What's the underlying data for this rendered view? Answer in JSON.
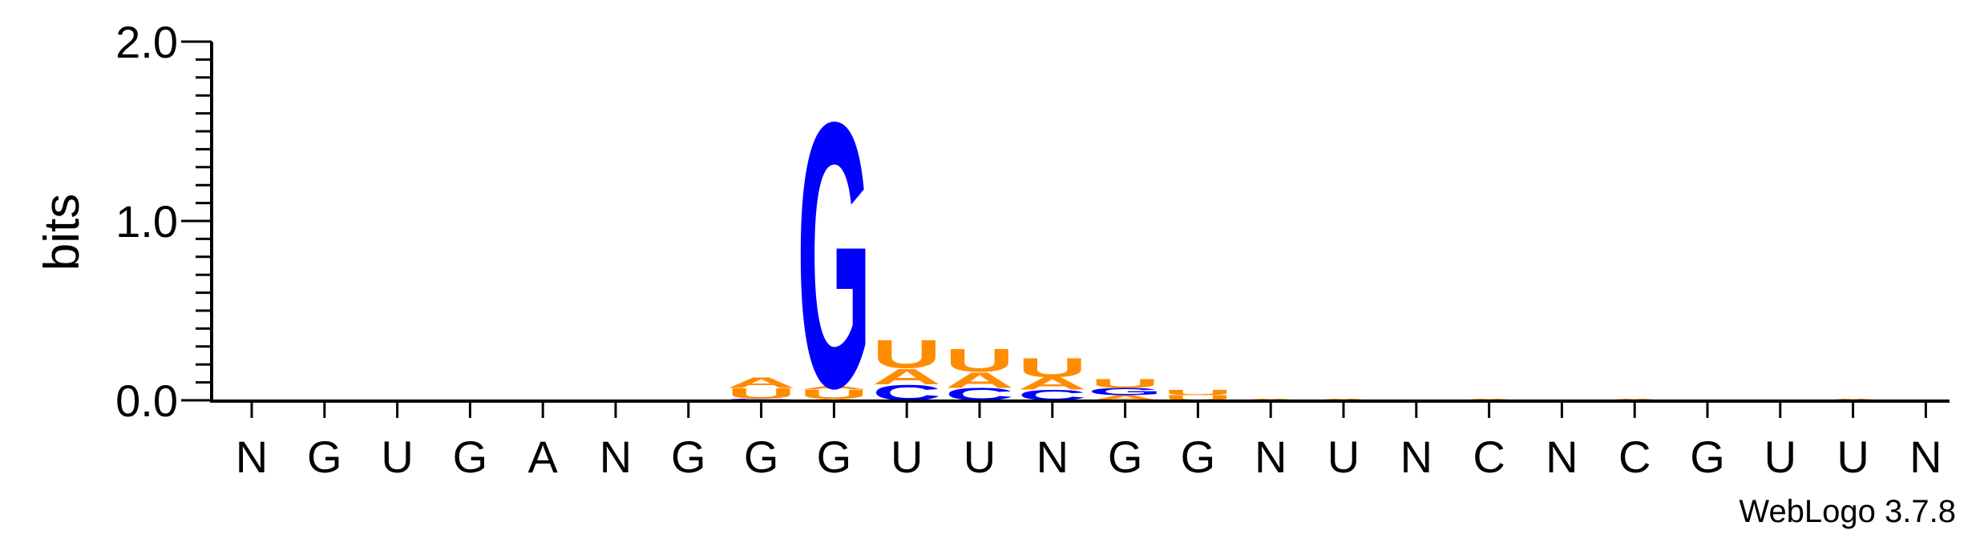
{
  "chart_data": {
    "type": "sequence-logo",
    "ylabel": "bits",
    "ylim": [
      0,
      2.0
    ],
    "yticks": [
      "0.0",
      "1.0",
      "2.0"
    ],
    "consensus": [
      "N",
      "G",
      "U",
      "G",
      "A",
      "N",
      "G",
      "G",
      "G",
      "U",
      "U",
      "N",
      "G",
      "G",
      "N",
      "U",
      "N",
      "C",
      "N",
      "C",
      "G",
      "U",
      "U",
      "N"
    ],
    "colors": {
      "A": "#ff8c00",
      "U": "#ff8c00",
      "C": "#0000ff",
      "G": "#0000ff"
    },
    "positions": [
      {
        "pos": 7,
        "stack": [
          {
            "base": "C",
            "bits": 0.01
          },
          {
            "base": "U",
            "bits": 0.06
          },
          {
            "base": "A",
            "bits": 0.06
          }
        ]
      },
      {
        "pos": 8,
        "stack": [
          {
            "base": "A",
            "bits": 0.01
          },
          {
            "base": "U",
            "bits": 0.05
          },
          {
            "base": "A",
            "bits": 0.02
          },
          {
            "base": "G",
            "bits": 1.52
          }
        ]
      },
      {
        "pos": 9,
        "stack": [
          {
            "base": "C",
            "bits": 0.09
          },
          {
            "base": "A",
            "bits": 0.09
          },
          {
            "base": "U",
            "bits": 0.16
          }
        ]
      },
      {
        "pos": 10,
        "stack": [
          {
            "base": "C",
            "bits": 0.07
          },
          {
            "base": "A",
            "bits": 0.09
          },
          {
            "base": "U",
            "bits": 0.13
          }
        ]
      },
      {
        "pos": 11,
        "stack": [
          {
            "base": "C",
            "bits": 0.06
          },
          {
            "base": "A",
            "bits": 0.07
          },
          {
            "base": "U",
            "bits": 0.11
          }
        ]
      },
      {
        "pos": 12,
        "stack": [
          {
            "base": "A",
            "bits": 0.03
          },
          {
            "base": "G",
            "bits": 0.04
          },
          {
            "base": "U",
            "bits": 0.05
          }
        ]
      },
      {
        "pos": 13,
        "stack": [
          {
            "base": "U",
            "bits": 0.03
          },
          {
            "base": "U",
            "bits": 0.03
          }
        ]
      },
      {
        "pos": 14,
        "stack": [
          {
            "base": "A",
            "bits": 0.01
          }
        ]
      },
      {
        "pos": 15,
        "stack": [
          {
            "base": "A",
            "bits": 0.01
          }
        ]
      },
      {
        "pos": 17,
        "stack": [
          {
            "base": "A",
            "bits": 0.01
          }
        ]
      },
      {
        "pos": 19,
        "stack": [
          {
            "base": "A",
            "bits": 0.01
          }
        ]
      },
      {
        "pos": 22,
        "stack": [
          {
            "base": "A",
            "bits": 0.01
          }
        ]
      }
    ]
  },
  "credit": "WebLogo 3.7.8"
}
